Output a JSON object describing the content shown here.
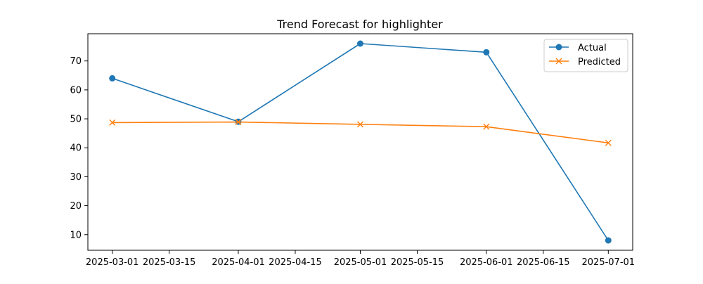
{
  "chart_data": {
    "type": "line",
    "title": "Trend Forecast for highlighter",
    "xlabel": "",
    "ylabel": "",
    "x_ticks": [
      "2025-03-01",
      "2025-03-15",
      "2025-04-01",
      "2025-04-15",
      "2025-05-01",
      "2025-05-15",
      "2025-06-01",
      "2025-06-15",
      "2025-07-01"
    ],
    "y_ticks": [
      10,
      20,
      30,
      40,
      50,
      60,
      70
    ],
    "xlim": [
      "2025-02-23",
      "2025-07-07"
    ],
    "ylim": [
      4.6,
      79.4
    ],
    "grid": false,
    "legend_position": "top-right",
    "x": [
      "2025-03-01",
      "2025-04-01",
      "2025-05-01",
      "2025-06-01",
      "2025-07-01"
    ],
    "series": [
      {
        "name": "Actual",
        "values": [
          64,
          49,
          76,
          73,
          8
        ],
        "color": "#1f77b4",
        "marker": "circle"
      },
      {
        "name": "Predicted",
        "values": [
          48.7,
          48.9,
          48.1,
          47.3,
          41.7
        ],
        "color": "#ff7f0e",
        "marker": "x"
      }
    ]
  }
}
